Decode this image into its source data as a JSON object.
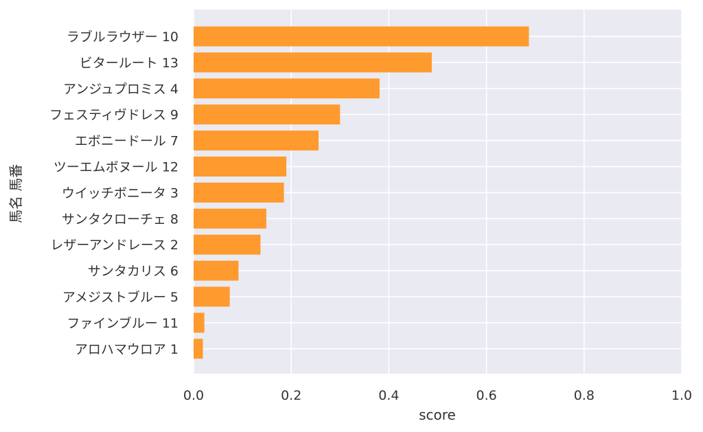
{
  "chart_data": {
    "type": "bar",
    "orientation": "horizontal",
    "xlabel": "score",
    "ylabel": "馬名 馬番",
    "xlim": [
      0.0,
      1.0
    ],
    "xticks": [
      "0.0",
      "0.2",
      "0.4",
      "0.6",
      "0.8",
      "1.0"
    ],
    "grid": true,
    "colors": {
      "background": "#eaeaf2",
      "bar": "#ff9a2e",
      "grid": "#ffffff"
    },
    "categories": [
      "ラブルラウザー 10",
      "ビタールート 13",
      "アンジュプロミス 4",
      "フェスティヴドレス 9",
      "エボニードール 7",
      "ツーエムボヌール 12",
      "ウイッチボニータ 3",
      "サンタクローチェ 8",
      "レザーアンドレース 2",
      "サンタカリス 6",
      "アメジストブルー 5",
      "ファインブルー 11",
      "アロハマウロア 1"
    ],
    "values": [
      0.687,
      0.488,
      0.381,
      0.3,
      0.256,
      0.19,
      0.185,
      0.149,
      0.137,
      0.092,
      0.074,
      0.022,
      0.019
    ]
  }
}
